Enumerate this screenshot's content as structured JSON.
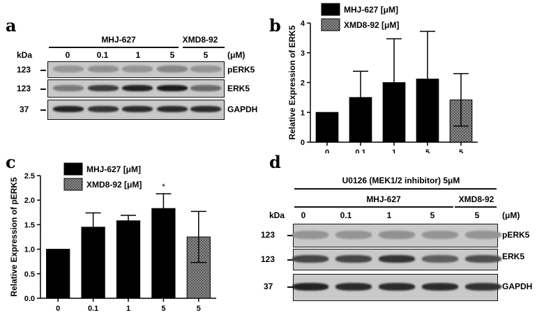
{
  "panels": {
    "a": "a",
    "b": "b",
    "c": "c",
    "d": "d"
  },
  "blot_a": {
    "group1": "MHJ-627",
    "group2": "XMD8-92",
    "kda_label": "kDa",
    "doses": [
      "0",
      "0.1",
      "1",
      "5",
      "5"
    ],
    "unit": "(μM)",
    "rows": [
      {
        "kda": "123",
        "label": "pERK5",
        "intensity": [
          0.28,
          0.32,
          0.3,
          0.38,
          0.3
        ]
      },
      {
        "kda": "123",
        "label": "ERK5",
        "intensity": [
          0.45,
          0.8,
          0.95,
          1.0,
          0.55
        ]
      },
      {
        "kda": "37",
        "label": "GAPDH",
        "intensity": [
          0.95,
          0.85,
          0.9,
          0.9,
          0.9
        ]
      }
    ]
  },
  "blot_d": {
    "treatment": "U0126 (MEK1/2 inhibitor) 5μM",
    "group1": "MHJ-627",
    "group2": "XMD8-92",
    "kda_label": "kDa",
    "doses": [
      "0",
      "0.1",
      "1",
      "5",
      "5"
    ],
    "unit": "(μM)",
    "rows": [
      {
        "kda": "123",
        "label": "pERK5",
        "intensity": [
          0.3,
          0.3,
          0.32,
          0.3,
          0.3
        ]
      },
      {
        "kda": "123",
        "label": "ERK5",
        "intensity": [
          0.75,
          0.75,
          0.85,
          0.6,
          0.7
        ]
      },
      {
        "kda": "37",
        "label": "GAPDH",
        "intensity": [
          0.95,
          0.9,
          0.9,
          0.9,
          0.85
        ]
      }
    ]
  },
  "chart_data": [
    {
      "type": "bar",
      "panel": "b",
      "categories": [
        "0",
        "0.1",
        "1",
        "5",
        "5"
      ],
      "values": [
        1.0,
        1.5,
        2.0,
        2.12,
        1.42
      ],
      "errors": [
        0,
        0.88,
        1.47,
        1.6,
        0.88
      ],
      "bar_series": [
        "MHJ-627 [μM]",
        "MHJ-627 [μM]",
        "MHJ-627 [μM]",
        "MHJ-627 [μM]",
        "XMD8-92 [μM]"
      ],
      "series": [
        {
          "name": "MHJ-627 [μM]",
          "fill": "#000000"
        },
        {
          "name": "XMD8-92 [μM]",
          "fill": "#777777"
        }
      ],
      "title": "",
      "xlabel": "",
      "ylabel": "Relative Expression of ERK5",
      "ylim": [
        0,
        4
      ],
      "yticks": [
        "0",
        "1",
        "2",
        "3",
        "4"
      ],
      "ytick_values": [
        0,
        1,
        2,
        3,
        4
      ],
      "annotations": [
        "",
        "",
        "",
        "",
        ""
      ],
      "grid": false,
      "legend": "top-left"
    },
    {
      "type": "bar",
      "panel": "c",
      "categories": [
        "0",
        "0.1",
        "1",
        "5",
        "5"
      ],
      "values": [
        1.0,
        1.45,
        1.58,
        1.83,
        1.25
      ],
      "errors": [
        0,
        0.29,
        0.11,
        0.3,
        0.52
      ],
      "bar_series": [
        "MHJ-627 [μM]",
        "MHJ-627 [μM]",
        "MHJ-627 [μM]",
        "MHJ-627 [μM]",
        "XMD8-92 [μM]"
      ],
      "series": [
        {
          "name": "MHJ-627 [μM]",
          "fill": "#000000"
        },
        {
          "name": "XMD8-92 [μM]",
          "fill": "#777777"
        }
      ],
      "title": "",
      "xlabel": "",
      "ylabel": "Relative Expression of pERK5",
      "ylim": [
        0,
        2.5
      ],
      "yticks": [
        "0.0",
        "0.5",
        "1.0",
        "1.5",
        "2.0",
        "2.5"
      ],
      "ytick_values": [
        0,
        0.5,
        1.0,
        1.5,
        2.0,
        2.5
      ],
      "annotations": [
        "",
        "",
        "",
        "*",
        ""
      ],
      "grid": false,
      "legend": "top-left"
    }
  ]
}
